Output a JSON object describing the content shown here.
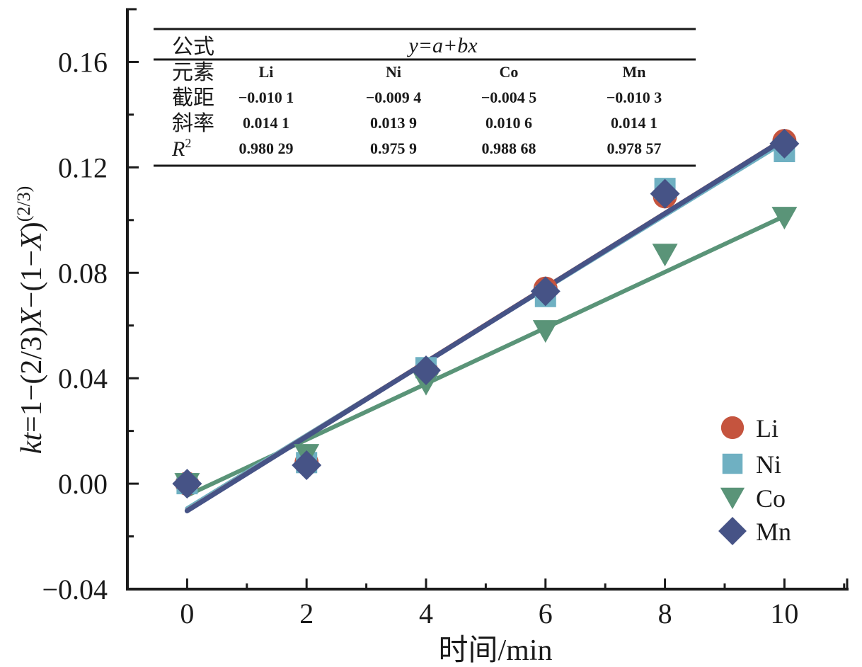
{
  "chart_data": {
    "type": "scatter",
    "title": "",
    "xlabel": "时间/min",
    "ylabel": "kt=1−(2/3)X−(1−X)^(2/3)",
    "ylabel_parts": {
      "italic1": "kt",
      "mid1": "=1−(2/3)",
      "italic2": "X",
      "mid2": "−(1−",
      "italic3": "X",
      "mid3": ")",
      "sup": "(2/3)"
    },
    "xlim": [
      -1,
      11.05
    ],
    "ylim": [
      -0.04,
      0.18
    ],
    "xticks": [
      0,
      2,
      4,
      6,
      8,
      10
    ],
    "xtick_labels": [
      "0",
      "2",
      "4",
      "6",
      "8",
      "10"
    ],
    "xminor": [
      1,
      3,
      5,
      7,
      9,
      11
    ],
    "yticks": [
      -0.04,
      0.0,
      0.04,
      0.08,
      0.12,
      0.16
    ],
    "ytick_labels": [
      "−0.04",
      "0.00",
      "0.04",
      "0.08",
      "0.12",
      "0.16"
    ],
    "yminor": [
      -0.02,
      0.02,
      0.06,
      0.1,
      0.14
    ],
    "grid": false,
    "legend_position": "bottom-right",
    "x": [
      0,
      2,
      4,
      6,
      8,
      10
    ],
    "series": [
      {
        "name": "Li",
        "marker": "circle",
        "color": "#c5543e",
        "values": [
          0.0,
          0.008,
          0.043,
          0.074,
          0.109,
          0.13
        ],
        "fit": {
          "intercept": -0.0101,
          "slope": 0.0141
        }
      },
      {
        "name": "Ni",
        "marker": "square",
        "color": "#6fb0c2",
        "values": [
          0.0,
          0.008,
          0.044,
          0.071,
          0.112,
          0.126
        ],
        "fit": {
          "intercept": -0.0094,
          "slope": 0.0139
        }
      },
      {
        "name": "Co",
        "marker": "triangle-down",
        "color": "#5a9478",
        "values": [
          0.0,
          0.011,
          0.038,
          0.058,
          0.087,
          0.101
        ],
        "fit": {
          "intercept": -0.0045,
          "slope": 0.0106
        }
      },
      {
        "name": "Mn",
        "marker": "diamond",
        "color": "#465386",
        "values": [
          0.0,
          0.007,
          0.043,
          0.073,
          0.11,
          0.129
        ],
        "fit": {
          "intercept": -0.0103,
          "slope": 0.0141
        }
      }
    ],
    "annotation_table": {
      "formula_label": "公式",
      "formula": "y=a+bx",
      "rows": [
        {
          "label": "元素",
          "cells": [
            "Li",
            "Ni",
            "Co",
            "Mn"
          ]
        },
        {
          "label": "截距",
          "cells": [
            "−0.010 1",
            "−0.009 4",
            "−0.004 5",
            "−0.010 3"
          ]
        },
        {
          "label": "斜率",
          "cells": [
            "0.014 1",
            "0.013 9",
            "0.010 6",
            "0.014 1"
          ]
        },
        {
          "label": "R²",
          "label_main": "R",
          "label_sup": "2",
          "cells": [
            "0.980 29",
            "0.975 9",
            "0.988 68",
            "0.978 57"
          ]
        }
      ]
    }
  }
}
